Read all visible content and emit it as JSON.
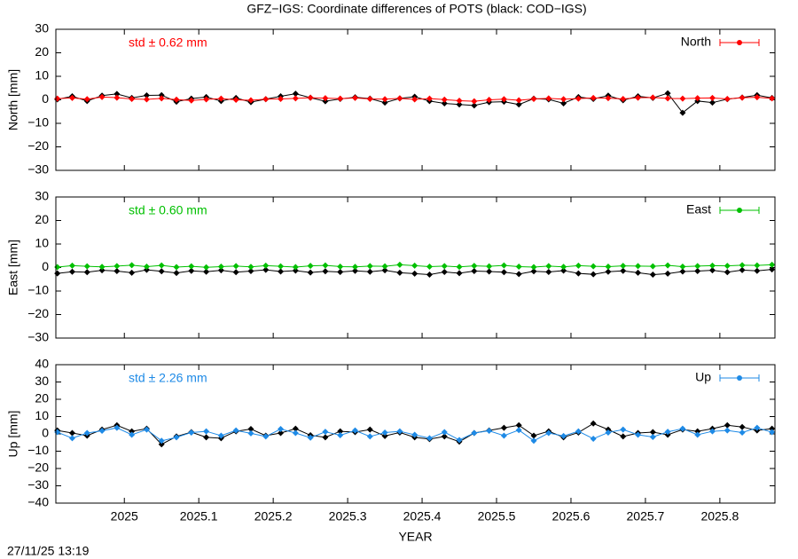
{
  "title": "GFZ−IGS: Coordinate differences of POTS (black: COD−IGS)",
  "timestamp": "27/11/25 13:19",
  "chart_data": [
    {
      "type": "line",
      "ylabel": "North [mm]",
      "annotation": "std ± 0.62 mm",
      "xlim": [
        2024.908,
        2025.874
      ],
      "ylim": [
        -30,
        30
      ],
      "yticks": [
        {
          "value": -30,
          "label": "−30"
        },
        {
          "value": -20,
          "label": "−20"
        },
        {
          "value": -10,
          "label": "−10"
        },
        0,
        10,
        20,
        30
      ],
      "x": [
        2024.91,
        2024.93,
        2024.95,
        2024.97,
        2024.99,
        2025.01,
        2025.03,
        2025.05,
        2025.07,
        2025.09,
        2025.11,
        2025.13,
        2025.15,
        2025.17,
        2025.19,
        2025.21,
        2025.23,
        2025.25,
        2025.27,
        2025.29,
        2025.31,
        2025.33,
        2025.35,
        2025.37,
        2025.39,
        2025.41,
        2025.43,
        2025.45,
        2025.47,
        2025.49,
        2025.51,
        2025.53,
        2025.55,
        2025.57,
        2025.59,
        2025.61,
        2025.63,
        2025.65,
        2025.67,
        2025.69,
        2025.71,
        2025.73,
        2025.75,
        2025.77,
        2025.79,
        2025.81,
        2025.83,
        2025.85,
        2025.87
      ],
      "series": [
        {
          "color": "#000000",
          "values": [
            0.2,
            1.5,
            -0.5,
            1.8,
            2.5,
            0.8,
            1.9,
            2.0,
            -0.8,
            0.5,
            1.2,
            -0.5,
            0.8,
            -1.0,
            0.3,
            1.5,
            2.6,
            0.9,
            -0.6,
            0.4,
            1.1,
            0.5,
            -1.2,
            0.6,
            1.3,
            -0.5,
            -1.5,
            -2.0,
            -2.4,
            -1.0,
            -0.8,
            -2.0,
            0.5,
            0.2,
            -1.5,
            1.2,
            0.4,
            1.8,
            -0.2,
            1.5,
            0.8,
            2.8,
            -5.5,
            -0.5,
            -1.2,
            0.3,
            1.0,
            2.0,
            0.8
          ]
        },
        {
          "name": "North",
          "color": "#ff0000",
          "values": [
            0.5,
            0.8,
            0.3,
            1.2,
            0.9,
            0.4,
            0.2,
            0.6,
            0.1,
            -0.3,
            0.2,
            0.5,
            0.0,
            -0.2,
            0.3,
            0.4,
            0.6,
            0.9,
            0.7,
            0.5,
            0.8,
            0.4,
            0.3,
            0.6,
            0.2,
            0.5,
            0.1,
            -0.4,
            -0.6,
            0.0,
            0.3,
            -0.2,
            0.4,
            0.6,
            0.3,
            0.5,
            0.8,
            0.7,
            0.4,
            0.9,
            1.0,
            0.6,
            0.5,
            0.7,
            0.8,
            0.4,
            0.9,
            1.1,
            0.6
          ]
        }
      ]
    },
    {
      "type": "line",
      "ylabel": "East [mm]",
      "annotation": "std ± 0.60 mm",
      "xlim": [
        2024.908,
        2025.874
      ],
      "ylim": [
        -30,
        30
      ],
      "yticks": [
        {
          "value": -30,
          "label": "−30"
        },
        {
          "value": -20,
          "label": "−20"
        },
        {
          "value": -10,
          "label": "−10"
        },
        0,
        10,
        20,
        30
      ],
      "x": [
        2024.91,
        2024.93,
        2024.95,
        2024.97,
        2024.99,
        2025.01,
        2025.03,
        2025.05,
        2025.07,
        2025.09,
        2025.11,
        2025.13,
        2025.15,
        2025.17,
        2025.19,
        2025.21,
        2025.23,
        2025.25,
        2025.27,
        2025.29,
        2025.31,
        2025.33,
        2025.35,
        2025.37,
        2025.39,
        2025.41,
        2025.43,
        2025.45,
        2025.47,
        2025.49,
        2025.51,
        2025.53,
        2025.55,
        2025.57,
        2025.59,
        2025.61,
        2025.63,
        2025.65,
        2025.67,
        2025.69,
        2025.71,
        2025.73,
        2025.75,
        2025.77,
        2025.79,
        2025.81,
        2025.83,
        2025.85,
        2025.87
      ],
      "series": [
        {
          "color": "#000000",
          "values": [
            -2.5,
            -1.8,
            -2.0,
            -1.2,
            -1.5,
            -2.2,
            -1.0,
            -1.6,
            -2.3,
            -1.4,
            -1.8,
            -1.2,
            -2.0,
            -1.5,
            -1.0,
            -1.7,
            -1.3,
            -2.1,
            -1.6,
            -1.9,
            -1.4,
            -1.8,
            -1.2,
            -2.2,
            -2.6,
            -3.0,
            -1.9,
            -2.4,
            -1.5,
            -1.7,
            -2.0,
            -2.8,
            -1.6,
            -1.9,
            -1.3,
            -2.5,
            -2.9,
            -1.8,
            -1.4,
            -2.2,
            -3.0,
            -2.6,
            -1.7,
            -1.5,
            -1.2,
            -2.0,
            -1.1,
            -1.4,
            -0.8
          ]
        },
        {
          "name": "East",
          "color": "#00c000",
          "values": [
            0.2,
            0.8,
            0.5,
            0.3,
            0.6,
            1.0,
            0.4,
            0.9,
            0.2,
            0.5,
            0.1,
            0.4,
            0.6,
            0.3,
            0.8,
            0.5,
            0.2,
            0.7,
            0.9,
            0.4,
            0.3,
            0.6,
            0.5,
            1.2,
            0.8,
            0.4,
            0.6,
            0.3,
            0.7,
            0.5,
            0.9,
            0.4,
            0.2,
            0.6,
            0.3,
            0.8,
            0.5,
            0.4,
            0.7,
            0.6,
            0.5,
            0.9,
            0.4,
            0.6,
            0.8,
            0.7,
            1.0,
            0.9,
            1.2
          ]
        }
      ]
    },
    {
      "type": "line",
      "ylabel": "Up [mm]",
      "annotation": "std ± 2.26 mm",
      "xlabel": "YEAR",
      "xlim": [
        2024.908,
        2025.874
      ],
      "ylim": [
        -40,
        40
      ],
      "xticks": [
        2025,
        2025.1,
        2025.2,
        2025.3,
        2025.4,
        2025.5,
        2025.6,
        2025.7,
        2025.8
      ],
      "yticks": [
        {
          "value": -40,
          "label": "−40"
        },
        {
          "value": -30,
          "label": "−30"
        },
        {
          "value": -20,
          "label": "−20"
        },
        {
          "value": -10,
          "label": "−10"
        },
        0,
        10,
        20,
        30,
        40
      ],
      "x": [
        2024.91,
        2024.93,
        2024.95,
        2024.97,
        2024.99,
        2025.01,
        2025.03,
        2025.05,
        2025.07,
        2025.09,
        2025.11,
        2025.13,
        2025.15,
        2025.17,
        2025.19,
        2025.21,
        2025.23,
        2025.25,
        2025.27,
        2025.29,
        2025.31,
        2025.33,
        2025.35,
        2025.37,
        2025.39,
        2025.41,
        2025.43,
        2025.45,
        2025.47,
        2025.49,
        2025.51,
        2025.53,
        2025.55,
        2025.57,
        2025.59,
        2025.61,
        2025.63,
        2025.65,
        2025.67,
        2025.69,
        2025.71,
        2025.73,
        2025.75,
        2025.77,
        2025.79,
        2025.81,
        2025.83,
        2025.85,
        2025.87
      ],
      "series": [
        {
          "color": "#000000",
          "values": [
            2.0,
            0.5,
            -1.0,
            2.5,
            5.0,
            1.5,
            3.0,
            -6.0,
            -1.5,
            1.0,
            -2.0,
            -2.5,
            1.5,
            2.8,
            -1.0,
            0.5,
            3.0,
            -0.8,
            -2.0,
            1.5,
            1.0,
            2.5,
            -1.2,
            0.8,
            -2.0,
            -3.0,
            -1.5,
            -4.5,
            0.5,
            2.0,
            3.5,
            5.0,
            -1.0,
            1.5,
            -2.0,
            0.8,
            6.0,
            2.5,
            -1.5,
            0.5,
            1.0,
            -0.5,
            2.5,
            1.5,
            3.0,
            5.0,
            4.0,
            2.0,
            3.0
          ]
        },
        {
          "name": "Up",
          "color": "#1e8ae6",
          "values": [
            1.0,
            -2.5,
            0.5,
            1.8,
            3.5,
            -0.5,
            2.5,
            -4.0,
            -2.0,
            0.8,
            1.5,
            -1.0,
            2.0,
            0.3,
            -1.5,
            2.8,
            0.5,
            -2.2,
            1.2,
            -0.8,
            2.0,
            -1.5,
            0.8,
            1.5,
            -0.5,
            -2.5,
            1.0,
            -3.5,
            0.5,
            1.8,
            -1.0,
            2.2,
            -4.0,
            0.5,
            -1.2,
            1.5,
            -2.8,
            0.8,
            2.5,
            -0.5,
            -1.8,
            1.2,
            3.0,
            -0.5,
            1.5,
            2.0,
            0.8,
            3.5,
            1.0
          ]
        }
      ]
    }
  ]
}
